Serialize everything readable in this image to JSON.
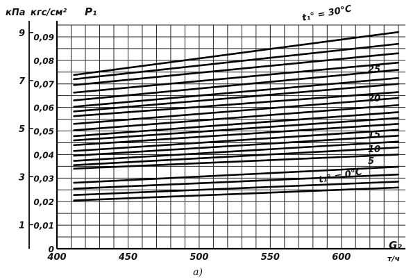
{
  "chart_data": {
    "type": "line",
    "title": "",
    "xlabel": "G₂",
    "xunit": "т/ч",
    "ylabel": "P₁",
    "y_unit_outer": "кПа",
    "y_unit_inner": "кгс/см²",
    "xlim": [
      400,
      645
    ],
    "ylim_kgf": [
      0,
      0.095
    ],
    "ylim_kpa": [
      0,
      9.5
    ],
    "x_ticks": [
      400,
      450,
      500,
      550,
      600
    ],
    "y_ticks_kgf": [
      "0",
      "0,01",
      "0,02",
      "0,03",
      "0,04",
      "0,05",
      "0,06",
      "0,07",
      "0,08",
      "0,09"
    ],
    "y_ticks_kgf_values": [
      0,
      0.01,
      0.02,
      0.03,
      0.04,
      0.05,
      0.06,
      0.07,
      0.08,
      0.09
    ],
    "y_ticks_kpa": [
      "1",
      "3",
      "5",
      "7",
      "9"
    ],
    "y_ticks_kpa_values": [
      1,
      3,
      5,
      7,
      9
    ],
    "grid": true,
    "annotations": {
      "top_curve": "t₁° = 30°C",
      "bottom_curve": "t₁° = 0°C",
      "right_labels": [
        "25",
        "20",
        "15",
        "10",
        "5"
      ]
    },
    "caption": "а)",
    "series_x": [
      412,
      640
    ],
    "series": [
      {
        "values": [
          0.0205,
          0.026
        ]
      },
      {
        "values": [
          0.0228,
          0.0285
        ]
      },
      {
        "values": [
          0.0255,
          0.0315
        ]
      },
      {
        "values": [
          0.028,
          0.0348
        ]
      },
      {
        "values": [
          0.034,
          0.04
        ]
      },
      {
        "values": [
          0.0355,
          0.043
        ]
      },
      {
        "values": [
          0.0373,
          0.0455
        ]
      },
      {
        "values": [
          0.0395,
          0.048
        ]
      },
      {
        "values": [
          0.0415,
          0.0505
        ]
      },
      {
        "values": [
          0.044,
          0.053
        ]
      },
      {
        "values": [
          0.046,
          0.0555
        ]
      },
      {
        "values": [
          0.0478,
          0.058
        ]
      },
      {
        "values": [
          0.0503,
          0.061
        ]
      },
      {
        "values": [
          0.053,
          0.064
        ]
      },
      {
        "values": [
          0.0563,
          0.0665
        ]
      },
      {
        "values": [
          0.0583,
          0.07
        ]
      },
      {
        "values": [
          0.0603,
          0.0725
        ]
      },
      {
        "values": [
          0.063,
          0.076
        ]
      },
      {
        "values": [
          0.0663,
          0.079
        ]
      },
      {
        "values": [
          0.0695,
          0.083
        ]
      },
      {
        "values": [
          0.072,
          0.087
        ]
      },
      {
        "values": [
          0.0738,
          0.092
        ]
      }
    ]
  }
}
